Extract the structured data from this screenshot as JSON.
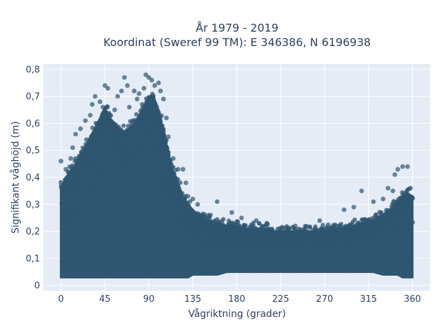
{
  "chart_data": {
    "type": "scatter",
    "title": "År 1979 - 2019",
    "subtitle": "Koordinat (Sweref 99 TM): E 346386, N 6196938",
    "xlabel": "Vågriktning (grader)",
    "ylabel": "Signifikant våghöjd (m)",
    "xlim": [
      -18,
      378
    ],
    "ylim": [
      -0.02,
      0.82
    ],
    "xticks": [
      0,
      45,
      90,
      135,
      180,
      225,
      270,
      315,
      360
    ],
    "xtick_labels": [
      "0",
      "45",
      "90",
      "135",
      "180",
      "225",
      "270",
      "315",
      "360"
    ],
    "yticks": [
      0,
      0.1,
      0.2,
      0.3,
      0.4,
      0.5,
      0.6,
      0.7,
      0.8
    ],
    "ytick_labels": [
      "0",
      "0,1",
      "0,2",
      "0,3",
      "0,4",
      "0,5",
      "0,6",
      "0,7",
      "0,8"
    ],
    "grid": true,
    "marker_color": "#2f5670",
    "plot_background": "#e5ecf6",
    "envelope": {
      "x": [
        0,
        5,
        10,
        20,
        30,
        40,
        45,
        50,
        55,
        60,
        65,
        70,
        75,
        80,
        85,
        90,
        95,
        100,
        105,
        110,
        115,
        120,
        125,
        130,
        135,
        140,
        150,
        160,
        170,
        180,
        190,
        200,
        210,
        220,
        230,
        240,
        250,
        260,
        270,
        280,
        290,
        300,
        310,
        320,
        330,
        340,
        345,
        350,
        355,
        360
      ],
      "upper": [
        0.36,
        0.4,
        0.42,
        0.48,
        0.55,
        0.62,
        0.66,
        0.62,
        0.6,
        0.58,
        0.57,
        0.58,
        0.6,
        0.63,
        0.66,
        0.7,
        0.7,
        0.65,
        0.58,
        0.5,
        0.42,
        0.38,
        0.33,
        0.3,
        0.28,
        0.26,
        0.24,
        0.23,
        0.22,
        0.22,
        0.21,
        0.21,
        0.21,
        0.2,
        0.2,
        0.2,
        0.2,
        0.2,
        0.2,
        0.21,
        0.21,
        0.22,
        0.23,
        0.24,
        0.26,
        0.29,
        0.31,
        0.33,
        0.34,
        0.33
      ],
      "lower": [
        0.03,
        0.03,
        0.03,
        0.03,
        0.03,
        0.03,
        0.03,
        0.03,
        0.03,
        0.03,
        0.03,
        0.03,
        0.03,
        0.03,
        0.03,
        0.03,
        0.03,
        0.03,
        0.03,
        0.03,
        0.03,
        0.03,
        0.03,
        0.03,
        0.04,
        0.04,
        0.04,
        0.04,
        0.05,
        0.05,
        0.05,
        0.05,
        0.05,
        0.05,
        0.05,
        0.05,
        0.05,
        0.05,
        0.05,
        0.05,
        0.05,
        0.05,
        0.05,
        0.05,
        0.04,
        0.04,
        0.04,
        0.03,
        0.03,
        0.03
      ]
    },
    "outliers": [
      {
        "x": 0,
        "y": 0.46
      },
      {
        "x": 5,
        "y": 0.43
      },
      {
        "x": 10,
        "y": 0.47
      },
      {
        "x": 12,
        "y": 0.51
      },
      {
        "x": 15,
        "y": 0.56
      },
      {
        "x": 20,
        "y": 0.58
      },
      {
        "x": 25,
        "y": 0.61
      },
      {
        "x": 30,
        "y": 0.63
      },
      {
        "x": 32,
        "y": 0.67
      },
      {
        "x": 35,
        "y": 0.7
      },
      {
        "x": 40,
        "y": 0.68
      },
      {
        "x": 43,
        "y": 0.66
      },
      {
        "x": 45,
        "y": 0.74
      },
      {
        "x": 48,
        "y": 0.73
      },
      {
        "x": 55,
        "y": 0.65
      },
      {
        "x": 58,
        "y": 0.7
      },
      {
        "x": 62,
        "y": 0.72
      },
      {
        "x": 65,
        "y": 0.77
      },
      {
        "x": 68,
        "y": 0.74
      },
      {
        "x": 70,
        "y": 0.66
      },
      {
        "x": 75,
        "y": 0.72
      },
      {
        "x": 78,
        "y": 0.69
      },
      {
        "x": 80,
        "y": 0.71
      },
      {
        "x": 85,
        "y": 0.73
      },
      {
        "x": 87,
        "y": 0.78
      },
      {
        "x": 90,
        "y": 0.77
      },
      {
        "x": 93,
        "y": 0.76
      },
      {
        "x": 96,
        "y": 0.74
      },
      {
        "x": 100,
        "y": 0.75
      },
      {
        "x": 102,
        "y": 0.72
      },
      {
        "x": 105,
        "y": 0.69
      },
      {
        "x": 108,
        "y": 0.62
      },
      {
        "x": 110,
        "y": 0.55
      },
      {
        "x": 115,
        "y": 0.47
      },
      {
        "x": 120,
        "y": 0.43
      },
      {
        "x": 125,
        "y": 0.43
      },
      {
        "x": 128,
        "y": 0.38
      },
      {
        "x": 130,
        "y": 0.33
      },
      {
        "x": 135,
        "y": 0.32
      },
      {
        "x": 140,
        "y": 0.3
      },
      {
        "x": 160,
        "y": 0.31
      },
      {
        "x": 175,
        "y": 0.27
      },
      {
        "x": 185,
        "y": 0.25
      },
      {
        "x": 200,
        "y": 0.24
      },
      {
        "x": 240,
        "y": 0.22
      },
      {
        "x": 265,
        "y": 0.24
      },
      {
        "x": 290,
        "y": 0.28
      },
      {
        "x": 300,
        "y": 0.29
      },
      {
        "x": 308,
        "y": 0.35
      },
      {
        "x": 320,
        "y": 0.31
      },
      {
        "x": 330,
        "y": 0.32
      },
      {
        "x": 335,
        "y": 0.36
      },
      {
        "x": 340,
        "y": 0.35
      },
      {
        "x": 342,
        "y": 0.41
      },
      {
        "x": 345,
        "y": 0.43
      },
      {
        "x": 350,
        "y": 0.44
      },
      {
        "x": 355,
        "y": 0.44
      },
      {
        "x": 358,
        "y": 0.36
      }
    ],
    "scatter_density_per_degree": 3,
    "random_seed": 7
  }
}
